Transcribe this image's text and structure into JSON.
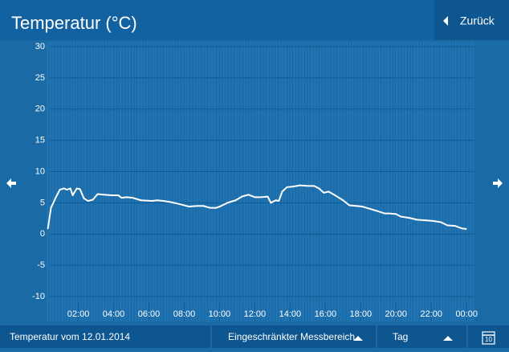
{
  "header": {
    "title": "Temperatur (°C)",
    "back": "Zurück"
  },
  "footer": {
    "date": "Temperatur vom 12.01.2014",
    "range": "Eingeschränkter Messbereich",
    "period": "Tag",
    "calendar_day": "10"
  },
  "chart_data": {
    "type": "line",
    "x": [
      0.27,
      0.45,
      0.73,
      0.95,
      1.18,
      1.36,
      1.55,
      1.68,
      1.91,
      2.09,
      2.32,
      2.55,
      2.82,
      3.09,
      3.45,
      3.91,
      4.27,
      4.45,
      4.73,
      5.09,
      5.55,
      6.18,
      6.45,
      6.82,
      7.27,
      7.73,
      8.27,
      8.73,
      9.09,
      9.45,
      9.82,
      10.09,
      10.45,
      10.91,
      11.27,
      11.64,
      12,
      12.36,
      12.73,
      12.91,
      13.18,
      13.36,
      13.55,
      13.82,
      14.18,
      14.55,
      15,
      15.36,
      15.64,
      15.91,
      16.18,
      16.55,
      17,
      17.36,
      17.73,
      18.09,
      18.45,
      18.91,
      19.36,
      19.64,
      20,
      20.27,
      20.73,
      21.18,
      21.64,
      22.09,
      22.55,
      22.91,
      23.36,
      23.73,
      24
    ],
    "series": [
      {
        "color": "#ffffff",
        "values": [
          0.8,
          4.2,
          5.9,
          7.1,
          7.3,
          7.1,
          7.3,
          6.2,
          7.3,
          7.2,
          5.7,
          5.3,
          5.5,
          6.4,
          6.3,
          6.2,
          6.2,
          5.8,
          5.9,
          5.8,
          5.4,
          5.3,
          5.4,
          5.3,
          5.1,
          4.8,
          4.4,
          4.5,
          4.5,
          4.2,
          4.2,
          4.5,
          5.0,
          5.4,
          6.0,
          6.3,
          5.9,
          5.9,
          6.0,
          5.0,
          5.4,
          5.3,
          6.8,
          7.5,
          7.6,
          7.8,
          7.7,
          7.7,
          7.3,
          6.6,
          6.8,
          6.2,
          5.4,
          4.6,
          4.5,
          4.4,
          4.1,
          3.7,
          3.3,
          3.3,
          3.2,
          2.8,
          2.6,
          2.3,
          2.2,
          2.1,
          1.9,
          1.4,
          1.3,
          0.9,
          0.8
        ]
      }
    ],
    "xlim": [
      0.2,
      24.4
    ],
    "xticks": [
      {
        "value": 2,
        "label": "02:00"
      },
      {
        "value": 4,
        "label": "04:00"
      },
      {
        "value": 6,
        "label": "06:00"
      },
      {
        "value": 8,
        "label": "08:00"
      },
      {
        "value": 10,
        "label": "10:00"
      },
      {
        "value": 12,
        "label": "12:00"
      },
      {
        "value": 14,
        "label": "14:00"
      },
      {
        "value": 16,
        "label": "16:00"
      },
      {
        "value": 18,
        "label": "18:00"
      },
      {
        "value": 20,
        "label": "20:00"
      },
      {
        "value": 22,
        "label": "22:00"
      },
      {
        "value": 24,
        "label": "00:00"
      }
    ],
    "ylim": [
      -10,
      30
    ],
    "yticks": [
      -10,
      -5,
      0,
      5,
      10,
      15,
      20,
      25,
      30
    ],
    "grid": true
  }
}
